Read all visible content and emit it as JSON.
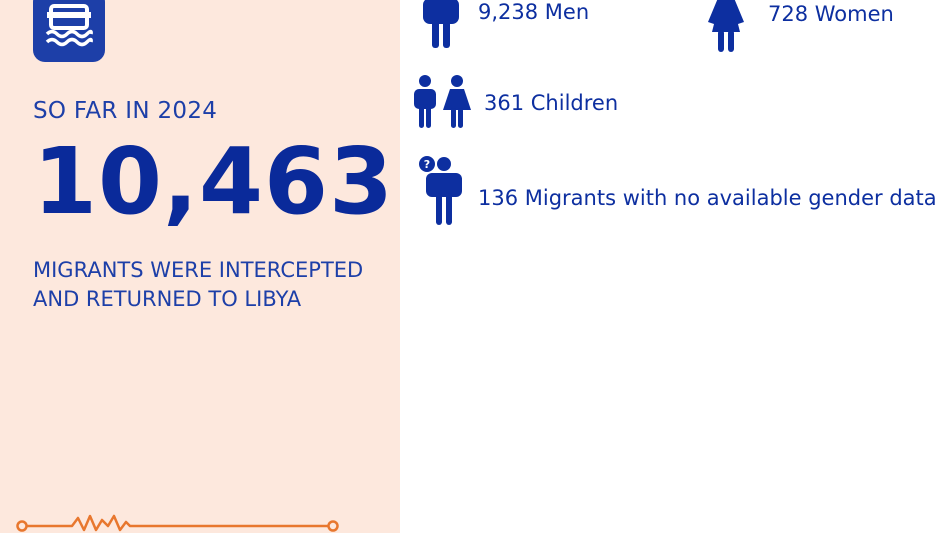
{
  "colors": {
    "panel_background": "#fde8dd",
    "primary_blue": "#1d3fa8",
    "accent_orange": "#e8772e"
  },
  "icons": {
    "badge": "boat-on-water-icon",
    "men": "man-figure-icon",
    "women": "woman-figure-icon",
    "children": "man-and-woman-figures-icon",
    "unknown": "figures-with-question-mark-icon",
    "decoration": "heartbeat-line-icon"
  },
  "summary": {
    "period": "SO FAR IN 2024",
    "total": "10,463",
    "caption_line1": "MIGRANTS WERE INTERCEPTED",
    "caption_line2": "AND RETURNED TO LIBYA"
  },
  "breakdown": {
    "men": "9,238 Men",
    "women": "728 Women",
    "children": "361 Children",
    "unknown": "136 Migrants with no available gender data"
  }
}
